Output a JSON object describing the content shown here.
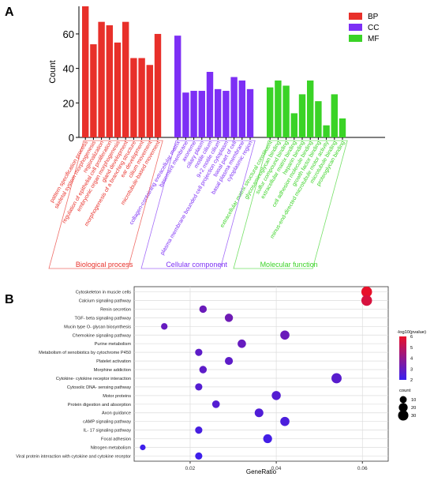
{
  "panels": {
    "a": {
      "letter": "A"
    },
    "b": {
      "letter": "B"
    }
  },
  "colors": {
    "BP": "#e8302a",
    "CC": "#7d2ff5",
    "MF": "#3ad326",
    "bubble_low": "#3a1ff0",
    "bubble_high": "#e8102a"
  },
  "chart_data": [
    {
      "type": "bar",
      "ylabel": "Count",
      "xlabel": "",
      "ylim": [
        0,
        76
      ],
      "yticks": [
        0,
        20,
        40,
        60
      ],
      "grid": false,
      "legend_position": "top-right",
      "legend": [
        "BP",
        "CC",
        "MF"
      ],
      "group_labels": {
        "BP": "Biological process",
        "CC": "Cellular component",
        "MF": "Molecular function"
      },
      "series": [
        {
          "name": "BP",
          "categories": [
            "pattern specification process",
            "skeletal system morphogenesis",
            "regionalization",
            "regulation of epithelial cell proliferation",
            "embryonic organ morphogenesis",
            "gland development",
            "morphogenesis of a branching structure",
            "ear development",
            "cilium movement",
            "microtubule-based movement"
          ],
          "values": [
            76,
            54,
            67,
            65,
            55,
            67,
            46,
            46,
            42,
            60
          ]
        },
        {
          "name": "CC",
          "categories": [
            "collagen-containing extracellular matrix",
            "basement membrane",
            "axoneme",
            "ciliary plasm",
            "motile cilium",
            "9+2 motile cilium",
            "plasma membrane bounded cell projection cytoplasm",
            "basal part of cell",
            "basal plasma membrane",
            "cytoplasmic region"
          ],
          "values": [
            59,
            26,
            27,
            27,
            38,
            28,
            27,
            35,
            33,
            28
          ]
        },
        {
          "name": "MF",
          "categories": [
            "extracellular matrix structural constituent",
            "glycosaminoglycan binding",
            "sulfur compound binding",
            "extracellular matrix binding",
            "heparin binding",
            "cell adhesion molecule binding",
            "growth factor binding",
            "minus-end-directed microtubule motor activity",
            "microtubule binding",
            "proteoglycan binding"
          ],
          "values": [
            29,
            33,
            30,
            14,
            25,
            33,
            21,
            7,
            25,
            11
          ]
        }
      ]
    },
    {
      "type": "scatter",
      "xlabel": "GeneRatio",
      "ylabel": "",
      "xlim": [
        0.007,
        0.066
      ],
      "xticks": [
        0.02,
        0.04,
        0.06
      ],
      "grid": true,
      "color_legend_title": "-log10(pvalue)",
      "color_ticks": [
        2,
        3,
        4,
        5,
        6
      ],
      "size_legend_title": "count",
      "size_ticks": [
        10,
        20,
        30
      ],
      "legend_position": "right",
      "points": [
        {
          "label": "Cytoskeleton in muscle cells",
          "x": 0.061,
          "count": 33,
          "neglogp": 6.4
        },
        {
          "label": "Calcium signaling pathway",
          "x": 0.061,
          "count": 33,
          "neglogp": 5.6
        },
        {
          "label": "Renin secretion",
          "x": 0.023,
          "count": 12,
          "neglogp": 3.1
        },
        {
          "label": "TGF- beta signaling pathway",
          "x": 0.029,
          "count": 16,
          "neglogp": 3.2
        },
        {
          "label": "Mucin type O- glycan biosynthesis",
          "x": 0.014,
          "count": 8,
          "neglogp": 3.0
        },
        {
          "label": "Chemokine signaling pathway",
          "x": 0.042,
          "count": 22,
          "neglogp": 3.1
        },
        {
          "label": "Purine metabolism",
          "x": 0.032,
          "count": 17,
          "neglogp": 3.0
        },
        {
          "label": "Metabolism of xenobiotics by cytochrome P450",
          "x": 0.022,
          "count": 11,
          "neglogp": 2.8
        },
        {
          "label": "Platelet activation",
          "x": 0.029,
          "count": 15,
          "neglogp": 2.8
        },
        {
          "label": "Morphine addiction",
          "x": 0.023,
          "count": 12,
          "neglogp": 2.8
        },
        {
          "label": "Cytokine- cytokine receptor interaction",
          "x": 0.054,
          "count": 29,
          "neglogp": 2.7
        },
        {
          "label": "Cytosolic DNA- sensing pathway",
          "x": 0.022,
          "count": 11,
          "neglogp": 2.6
        },
        {
          "label": "Motor proteins",
          "x": 0.04,
          "count": 21,
          "neglogp": 2.6
        },
        {
          "label": "Protein digestion and absorption",
          "x": 0.026,
          "count": 13,
          "neglogp": 2.6
        },
        {
          "label": "Axon guidance",
          "x": 0.036,
          "count": 19,
          "neglogp": 2.5
        },
        {
          "label": "cAMP signaling pathway",
          "x": 0.042,
          "count": 22,
          "neglogp": 2.4
        },
        {
          "label": "IL- 17 signaling pathway",
          "x": 0.022,
          "count": 11,
          "neglogp": 2.3
        },
        {
          "label": "Focal adhesion",
          "x": 0.038,
          "count": 20,
          "neglogp": 2.2
        },
        {
          "label": "Nitrogen metabolism",
          "x": 0.009,
          "count": 5,
          "neglogp": 2.1
        },
        {
          "label": "Viral protein interaction with cytokine and cytokine receptor",
          "x": 0.022,
          "count": 11,
          "neglogp": 2.1
        }
      ]
    }
  ]
}
